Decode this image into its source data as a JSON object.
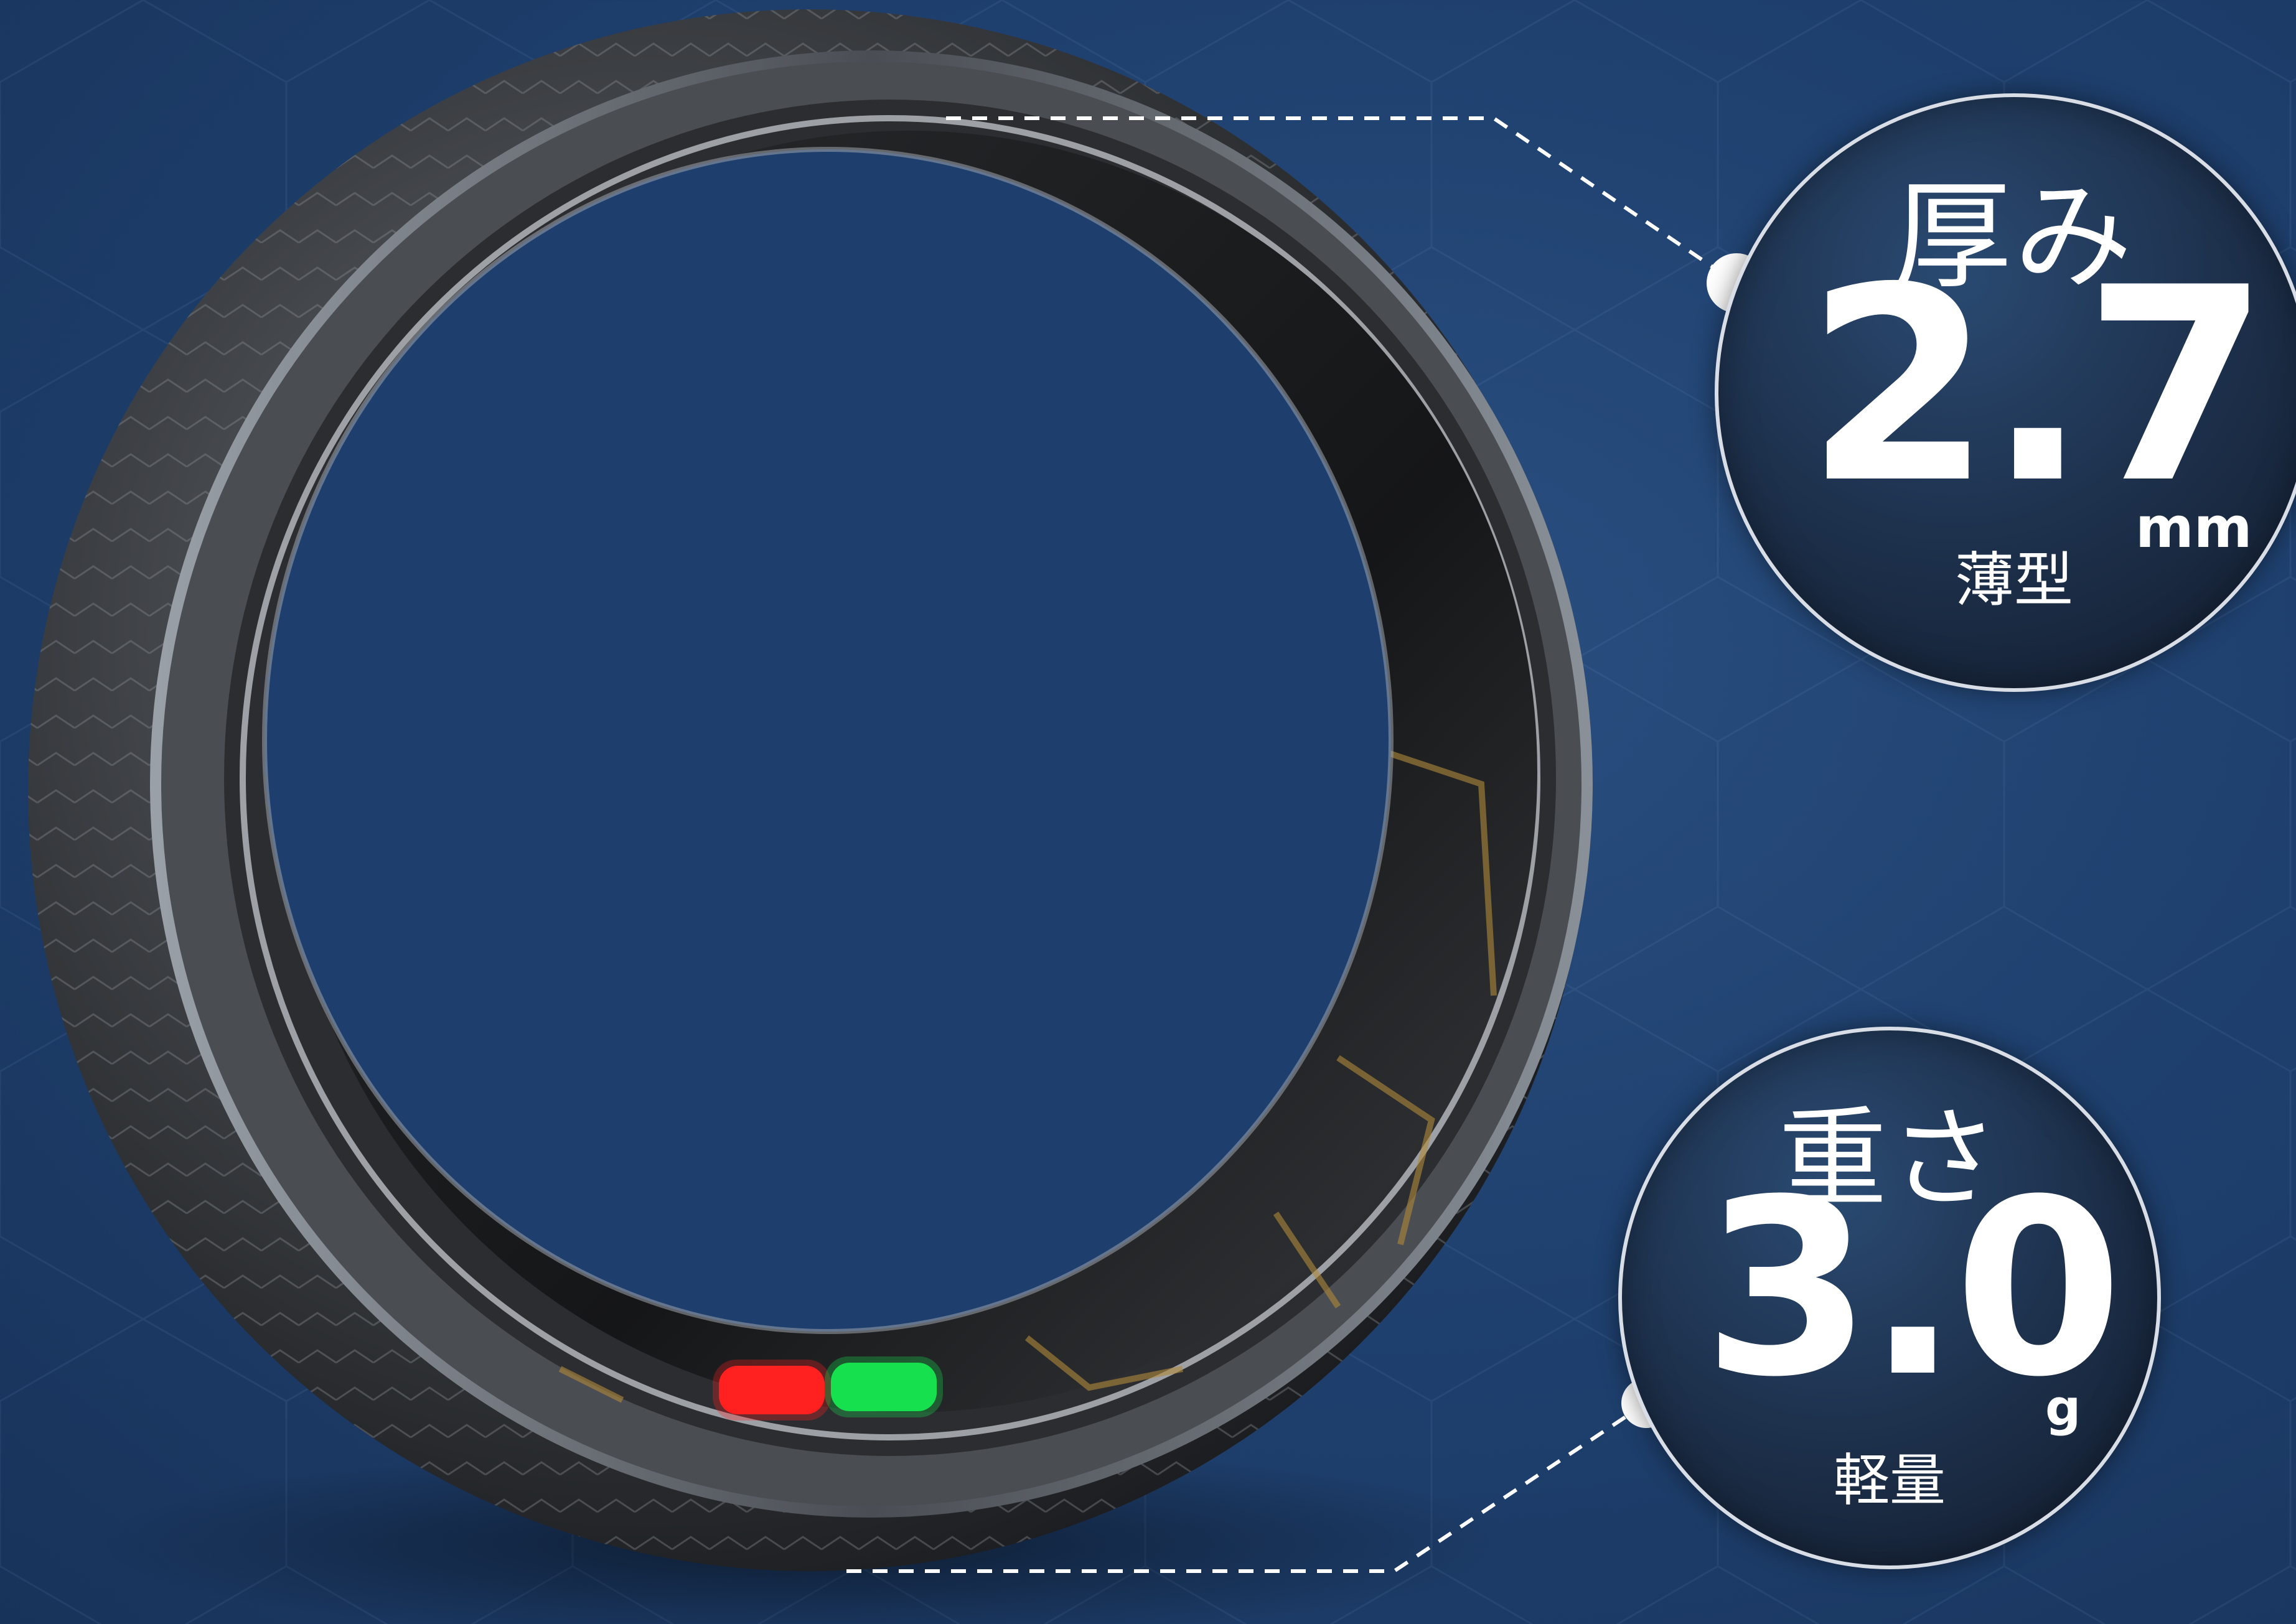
{
  "specs": {
    "thickness": {
      "label": "厚み",
      "value": "2.7",
      "unit": "mm",
      "note": "薄型"
    },
    "weight": {
      "label": "重さ",
      "value": "3.0",
      "unit": "g",
      "note": "軽量"
    }
  },
  "colors": {
    "background": "#1f4170",
    "badge_border": "#d8dde6",
    "led_red": "#ff2020",
    "led_green": "#18e050"
  }
}
